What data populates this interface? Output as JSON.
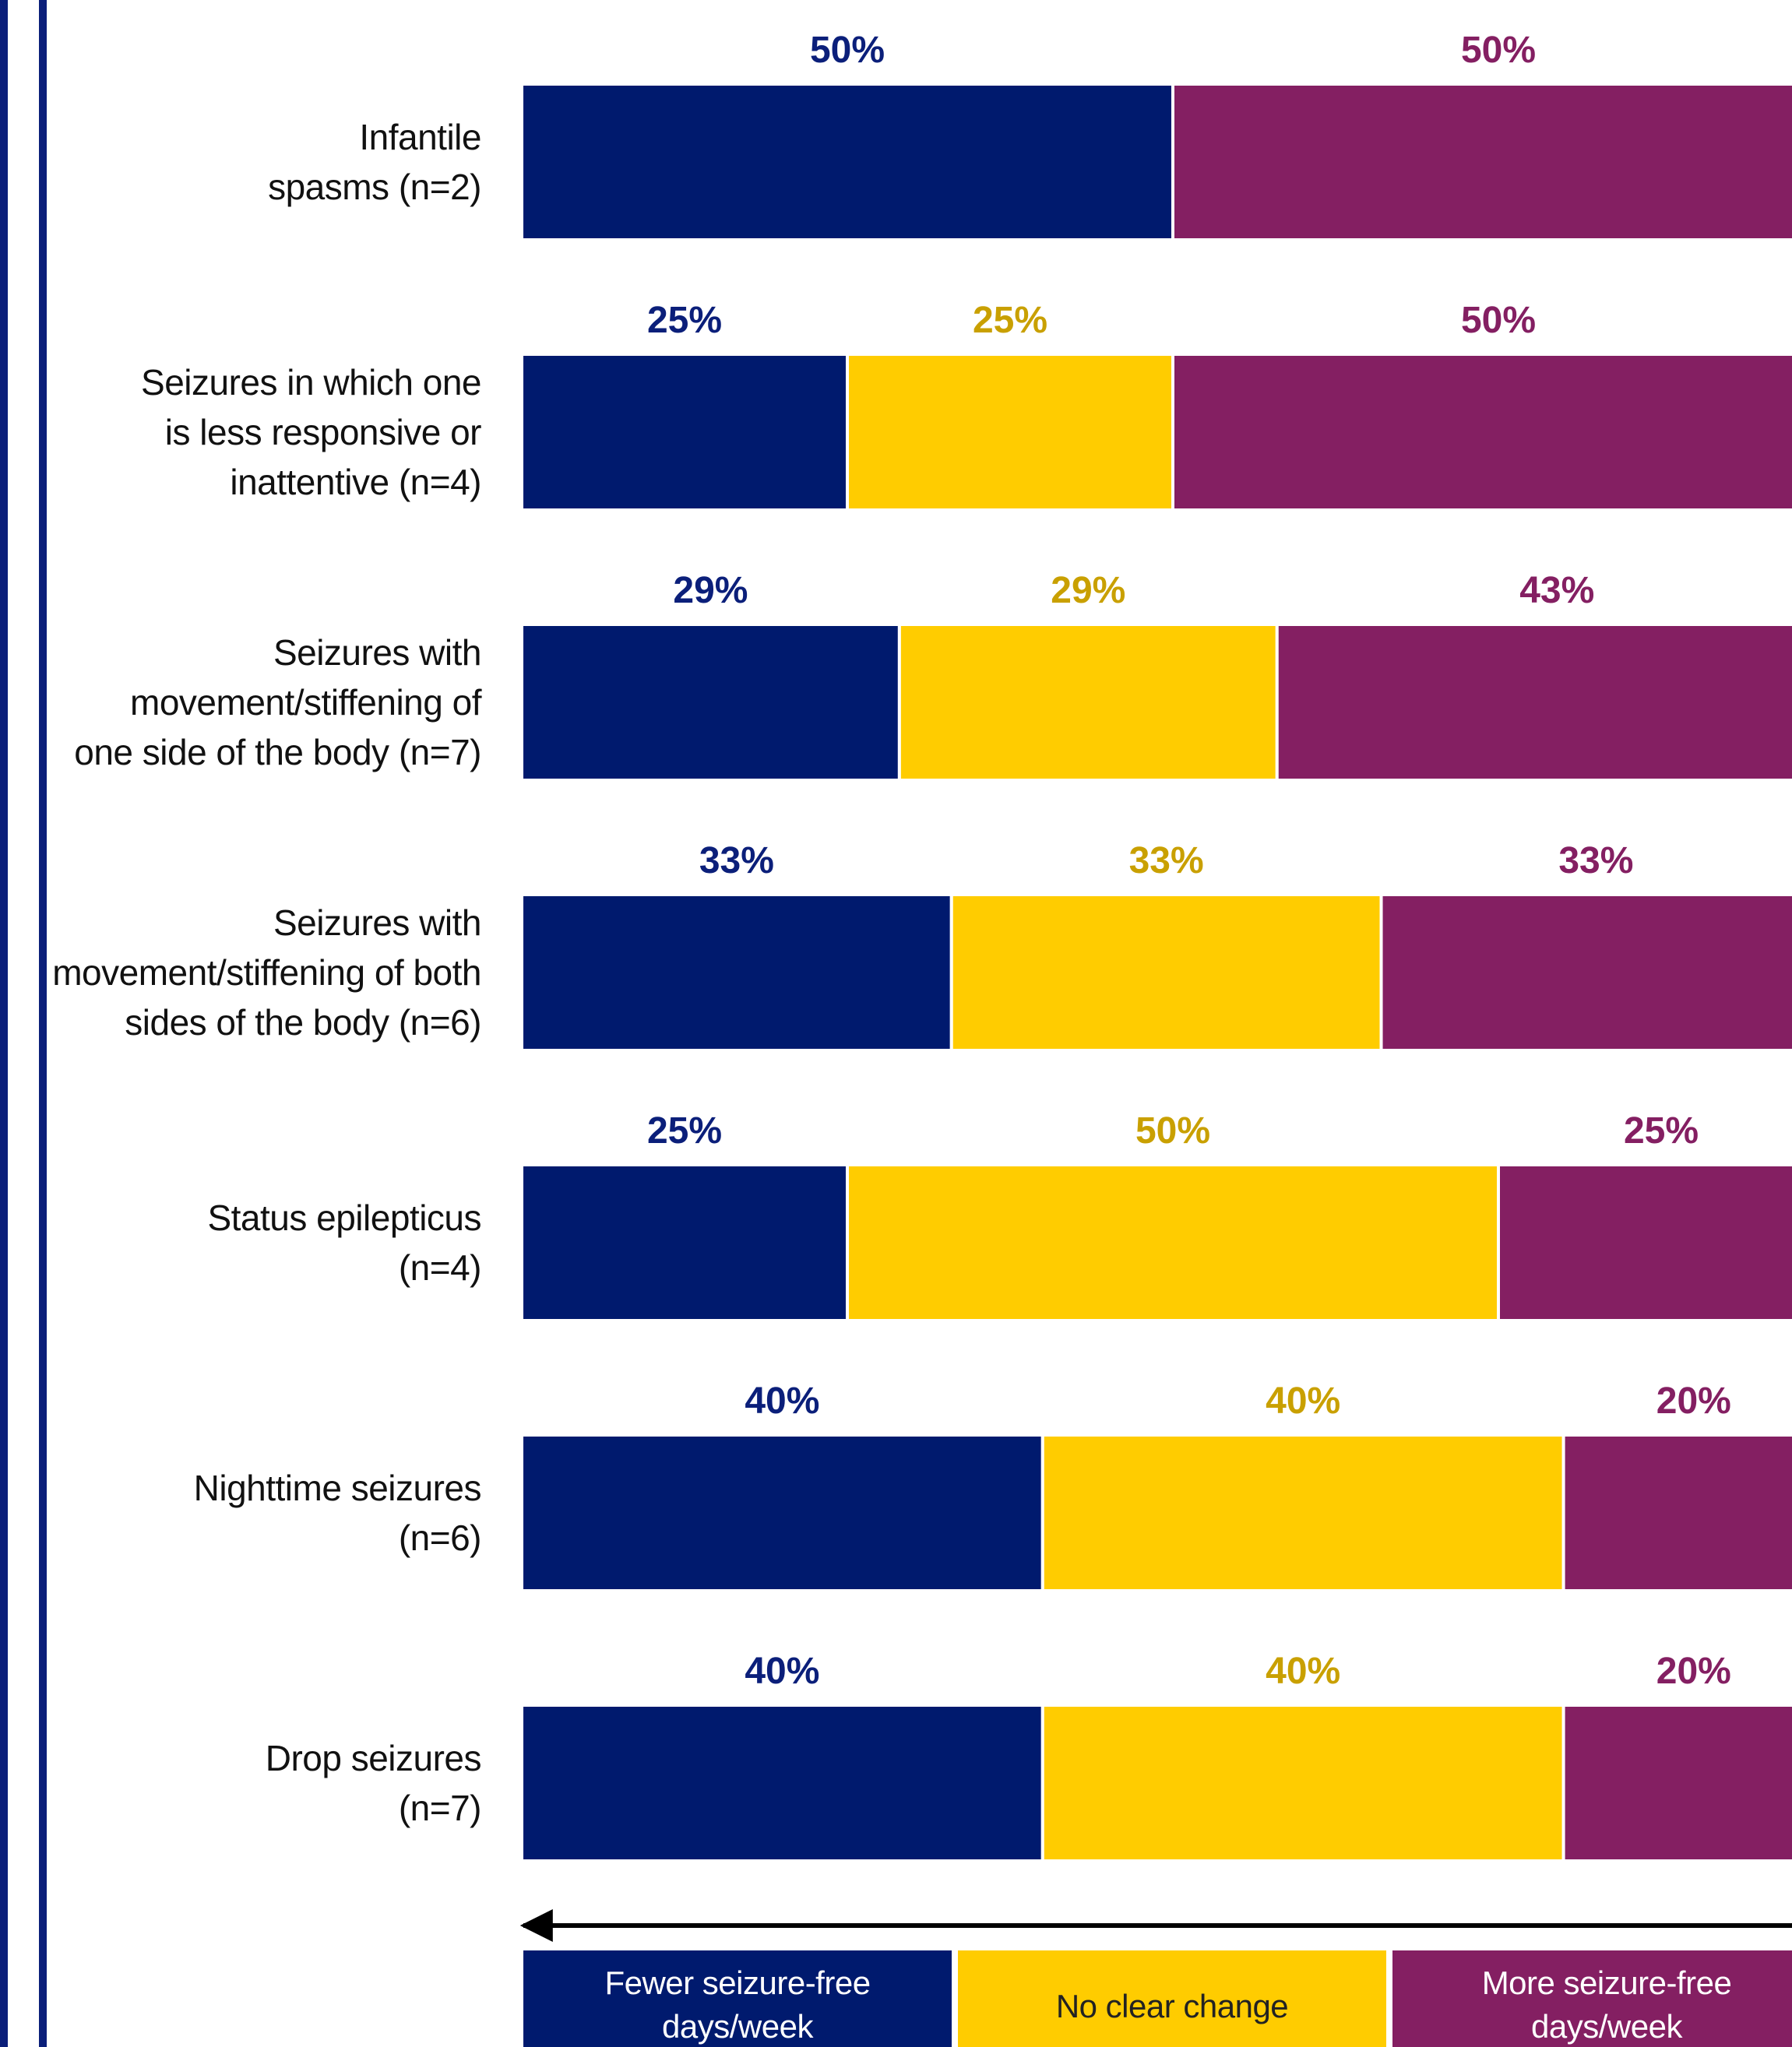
{
  "colors": {
    "fewer": "#001a6e",
    "fewer_text": "#0b1f7a",
    "no_change": "#ffcc00",
    "no_change_text": "#c9a000",
    "more": "#841f62",
    "more_text": "#841f62",
    "frame": "#0b1f7a"
  },
  "chart_data": {
    "type": "bar",
    "orientation": "horizontal",
    "stacked": true,
    "normalized_percent": true,
    "categories": [
      [
        "Infantile",
        "spasms (n=2)"
      ],
      [
        "Seizures in which one",
        "is less responsive or",
        "inattentive (n=4)"
      ],
      [
        "Seizures with",
        "movement/stiffening of",
        "one side of the body (n=7)"
      ],
      [
        "Seizures with",
        "movement/stiffening of both",
        "sides of the body (n=6)"
      ],
      [
        "Status epilepticus",
        "(n=4)"
      ],
      [
        "Nighttime seizures",
        "(n=6)"
      ],
      [
        "Drop seizures",
        "(n=7)"
      ]
    ],
    "series": [
      {
        "key": "fewer",
        "name": "Fewer seizure-free days/week",
        "values": [
          50,
          25,
          29,
          33,
          25,
          40,
          40
        ],
        "labels": [
          "50%",
          "25%",
          "29%",
          "33%",
          "25%",
          "40%",
          "40%"
        ]
      },
      {
        "key": "no_change",
        "name": "No clear change",
        "values": [
          0,
          25,
          29,
          33,
          50,
          40,
          40
        ],
        "labels": [
          "",
          "25%",
          "29%",
          "33%",
          "50%",
          "40%",
          "40%"
        ]
      },
      {
        "key": "more",
        "name": "More seizure-free days/week",
        "values": [
          50,
          50,
          43,
          33,
          25,
          20,
          20
        ],
        "labels": [
          "50%",
          "50%",
          "43%",
          "33%",
          "25%",
          "20%",
          "20%"
        ]
      }
    ],
    "legend": {
      "placement": "bottom",
      "items": [
        {
          "key": "fewer",
          "lines": [
            "Fewer seizure-free",
            "days/week"
          ]
        },
        {
          "key": "no_change",
          "lines": [
            "No clear change"
          ]
        },
        {
          "key": "more",
          "lines": [
            "More seizure-free",
            "days/week"
          ]
        }
      ]
    },
    "arrow": "double-headed, left to right, above legend",
    "grid": false
  }
}
